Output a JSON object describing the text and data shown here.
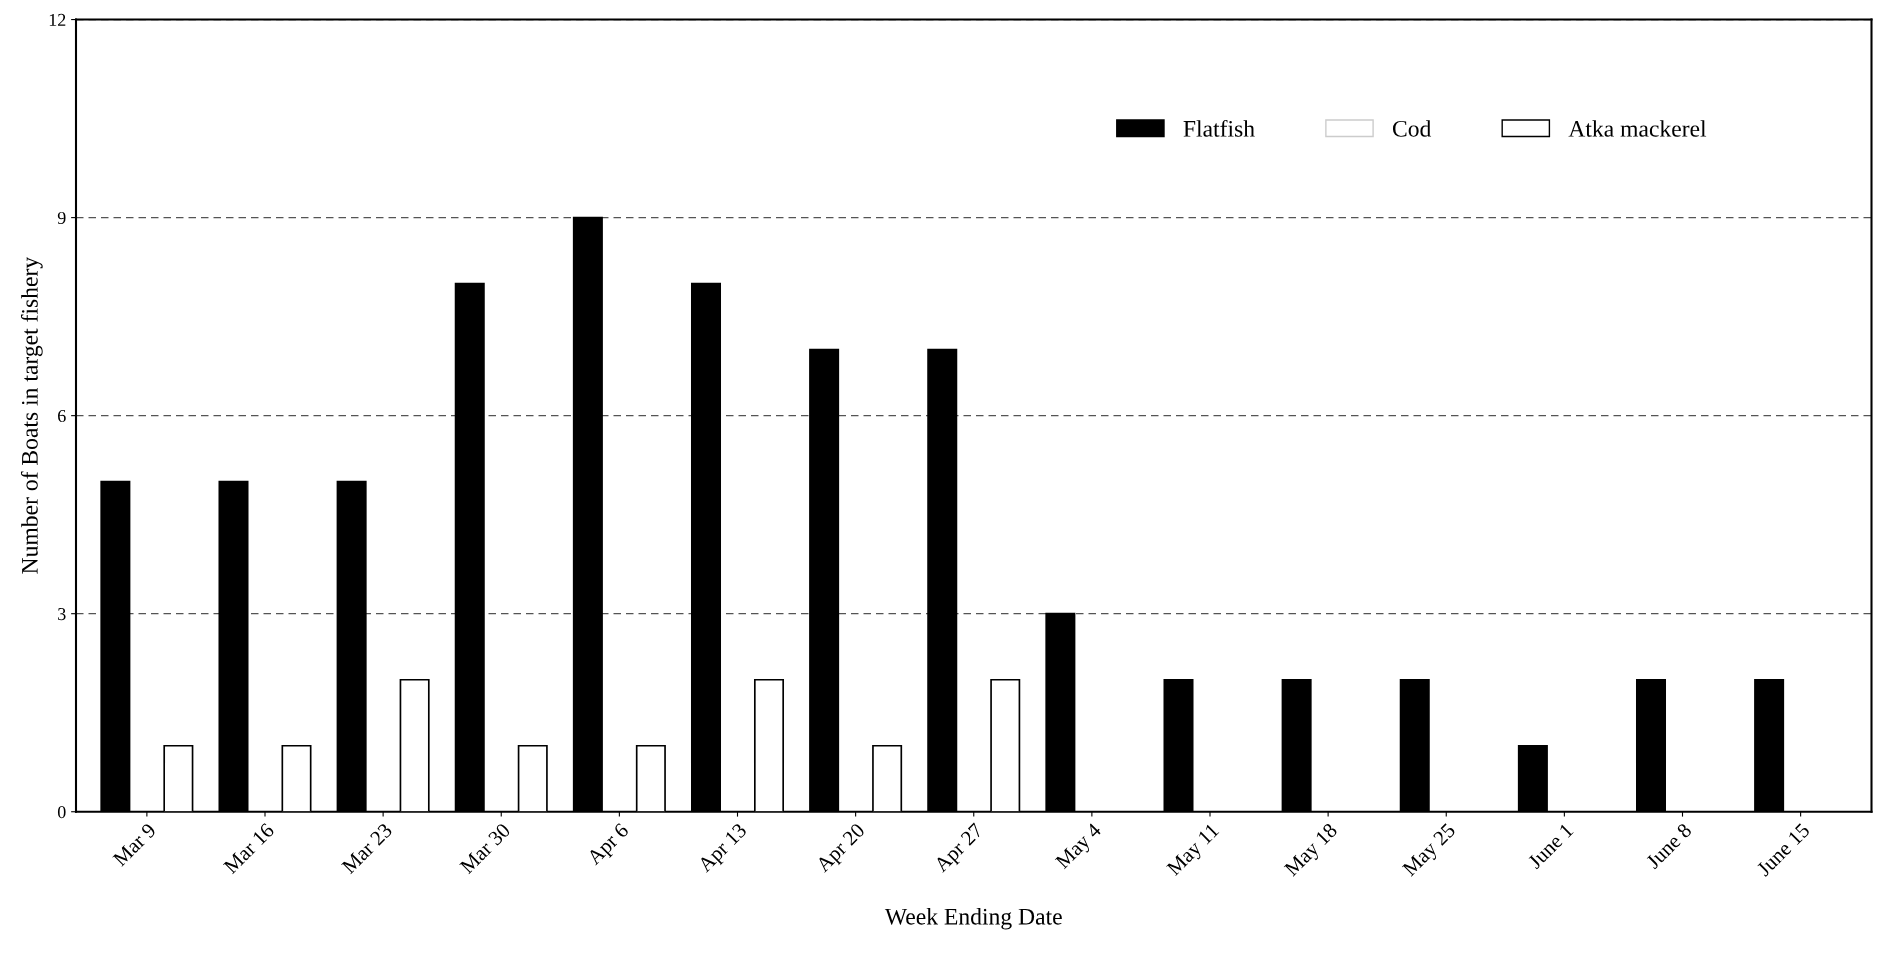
{
  "chart_data": {
    "type": "bar",
    "xlabel": "Week Ending Date",
    "ylabel": "Number of Boats in target fishery",
    "categories": [
      "Mar 9",
      "Mar 16",
      "Mar 23",
      "Mar 30",
      "Apr 6",
      "Apr 13",
      "Apr 20",
      "Apr 27",
      "May 4",
      "May 11",
      "May 18",
      "May 25",
      "June 1",
      "June 8",
      "June 15"
    ],
    "series": [
      {
        "name": "Flatfish",
        "color": "#000000",
        "values": [
          5,
          5,
          5,
          8,
          9,
          8,
          7,
          7,
          3,
          2,
          2,
          2,
          1,
          2,
          2
        ]
      },
      {
        "name": "Cod",
        "color": "#ffffff",
        "values": [
          null,
          null,
          null,
          null,
          null,
          null,
          null,
          null,
          null,
          null,
          null,
          null,
          null,
          null,
          null
        ]
      },
      {
        "name": "Atka mackerel",
        "color": "#ffffff",
        "values": [
          1,
          1,
          2,
          1,
          1,
          2,
          1,
          2,
          null,
          null,
          null,
          null,
          null,
          null,
          null
        ]
      }
    ],
    "ylim": [
      0,
      12
    ],
    "yticks": [
      0,
      3,
      6,
      9,
      12
    ],
    "grid": "y",
    "legend": "top right"
  }
}
